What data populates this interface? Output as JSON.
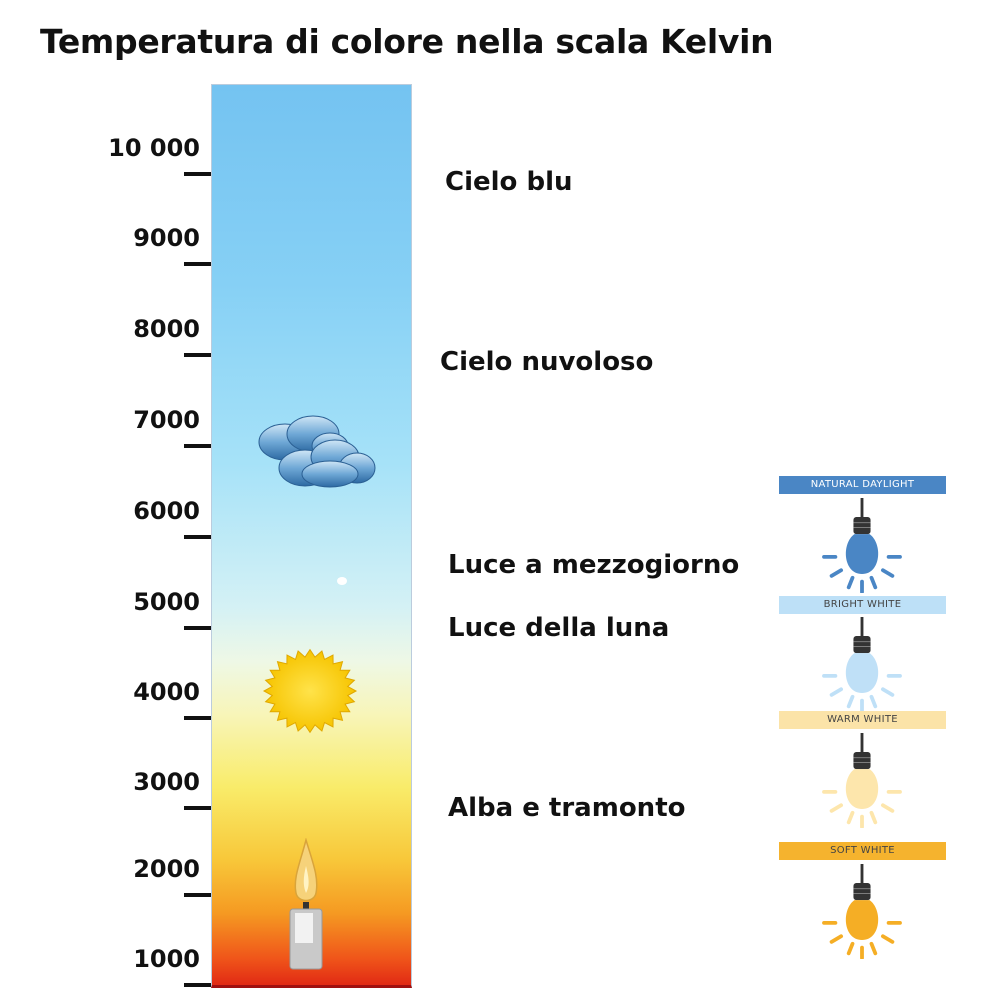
{
  "title": "Temperatura di colore nella scala Kelvin",
  "scale": {
    "unit": "K",
    "ticks": [
      "10 000",
      "9000",
      "8000",
      "7000",
      "6000",
      "5000",
      "4000",
      "3000",
      "2000",
      "1000"
    ]
  },
  "labels": [
    {
      "text": "Cielo blu",
      "kelvin": 9900
    },
    {
      "text": "Cielo nuvoloso",
      "kelvin": 7900
    },
    {
      "text": "Luce a mezzogiorno",
      "kelvin": 5650
    },
    {
      "text": "Luce della luna",
      "kelvin": 4950
    },
    {
      "text": "Alba e tramonto",
      "kelvin": 2950
    }
  ],
  "icons": [
    "cloud-icon",
    "sun-icon",
    "candle-icon"
  ],
  "bulbs": [
    {
      "label": "NATURAL DAYLIGHT",
      "color": "#4a86c5",
      "banner_color": "#4a86c5",
      "text_color": "#ffffff"
    },
    {
      "label": "BRIGHT WHITE",
      "color": "#bfe0f7",
      "banner_color": "#bde0f7",
      "text_color": "#444444"
    },
    {
      "label": "WARM WHITE",
      "color": "#fde6ac",
      "banner_color": "#fbe3a8",
      "text_color": "#444444"
    },
    {
      "label": "SOFT WHITE",
      "color": "#f5ae25",
      "banner_color": "#f5b32e",
      "text_color": "#444444"
    }
  ]
}
